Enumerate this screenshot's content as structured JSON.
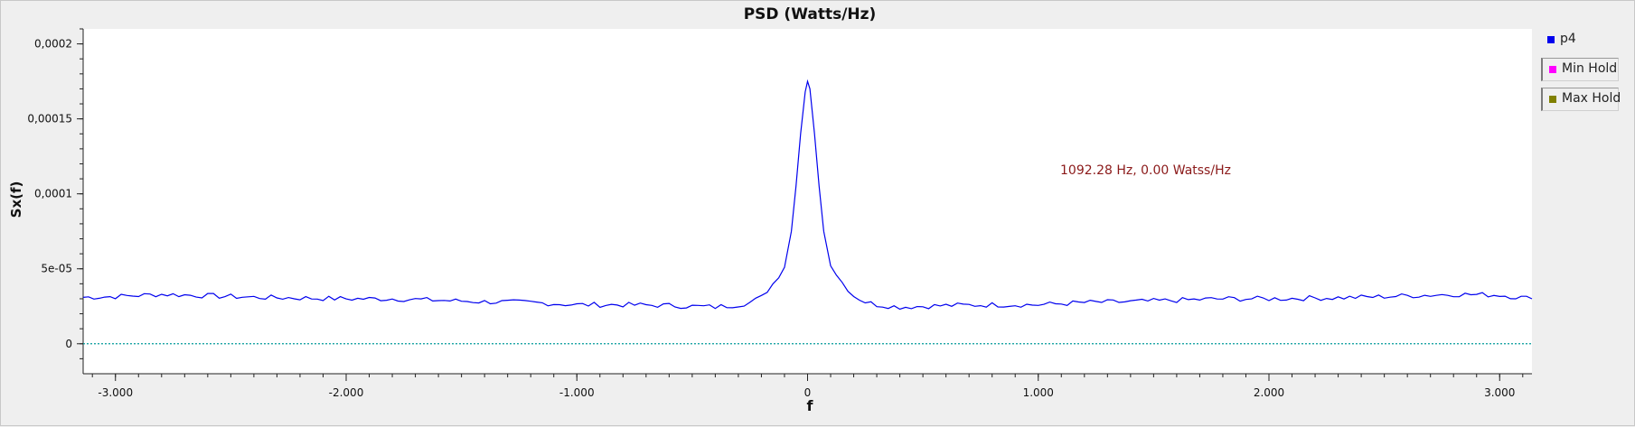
{
  "chart_data": {
    "type": "line",
    "title": "PSD (Watts/Hz)",
    "xlabel": "f",
    "ylabel": "Sx(f)",
    "xlim": [
      -3.14,
      3.14
    ],
    "ylim": [
      -2e-05,
      0.00021
    ],
    "x_ticks": [
      -3.0,
      -2.0,
      -1.0,
      0.0,
      1.0,
      2.0,
      3.0
    ],
    "x_tick_labels": [
      "-3.000",
      "-2.000",
      "-1.000",
      "0",
      "1.000",
      "2.000",
      "3.000"
    ],
    "y_ticks": [
      0,
      5e-05,
      0.0001,
      0.00015,
      0.0002
    ],
    "y_tick_labels": [
      "0",
      "5e-05",
      "0,0001",
      "0,00015",
      "0,0002"
    ],
    "grid": false,
    "legend_position": "right",
    "series": [
      {
        "name": "p4",
        "color": "#0000ee",
        "x": [
          -3.14,
          -3.0,
          -2.8,
          -2.6,
          -2.4,
          -2.2,
          -2.0,
          -1.8,
          -1.6,
          -1.4,
          -1.2,
          -1.0,
          -0.8,
          -0.6,
          -0.5,
          -0.4,
          -0.3,
          -0.25,
          -0.2,
          -0.15,
          -0.1,
          -0.07,
          -0.05,
          -0.03,
          -0.01,
          0.0,
          0.01,
          0.03,
          0.05,
          0.07,
          0.1,
          0.15,
          0.2,
          0.25,
          0.3,
          0.4,
          0.5,
          0.6,
          0.8,
          1.0,
          1.2,
          1.4,
          1.6,
          1.8,
          2.0,
          2.2,
          2.4,
          2.6,
          2.8,
          3.0,
          3.14
        ],
        "y": [
          3.1e-05,
          3.15e-05,
          3.3e-05,
          3.2e-05,
          3.1e-05,
          3.05e-05,
          3e-05,
          3e-05,
          2.9e-05,
          2.8e-05,
          2.75e-05,
          2.6e-05,
          2.6e-05,
          2.55e-05,
          2.5e-05,
          2.45e-05,
          2.6e-05,
          2.75e-05,
          3.1e-05,
          4e-05,
          5.1e-05,
          7.5e-05,
          0.000105,
          0.00014,
          0.000168,
          0.000175,
          0.00017,
          0.00014,
          0.000105,
          7.5e-05,
          5.2e-05,
          4.1e-05,
          3.2e-05,
          2.8e-05,
          2.6e-05,
          2.45e-05,
          2.5e-05,
          2.55e-05,
          2.6e-05,
          2.6e-05,
          2.75e-05,
          2.8e-05,
          2.9e-05,
          3e-05,
          3e-05,
          3.05e-05,
          3.1e-05,
          3.2e-05,
          3.3e-05,
          3.25e-05,
          3e-05
        ]
      },
      {
        "name": "Min Hold",
        "color": "#ff00ff",
        "x": [],
        "y": []
      },
      {
        "name": "Max Hold",
        "color": "#808000",
        "x": [],
        "y": []
      }
    ],
    "baseline": {
      "y": 0,
      "color": "#009999"
    },
    "annotation": {
      "text": "1092.28 Hz, 0.00 Watss/Hz",
      "color": "#8b1a1a"
    }
  }
}
